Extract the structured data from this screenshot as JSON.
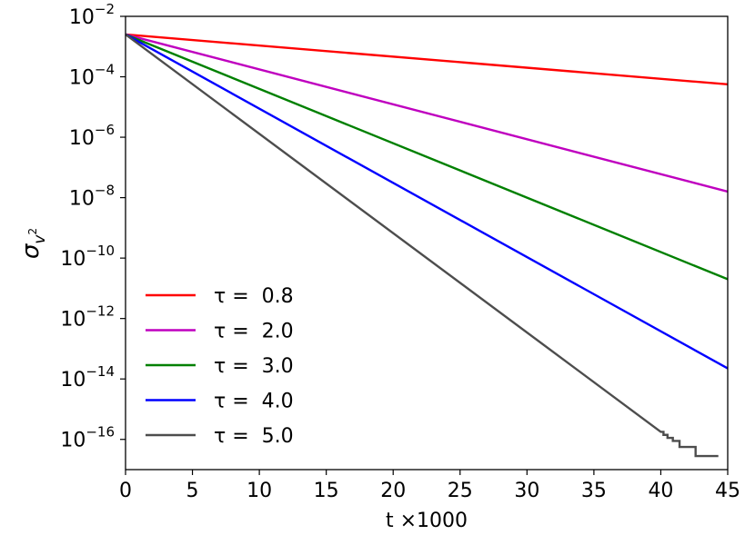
{
  "chart_data": {
    "type": "line",
    "title": "",
    "xlabel": "t ×1000",
    "ylabel": "σ",
    "ylabel_subscript": "v",
    "ylabel_sub_sup": "2",
    "yscale": "log",
    "xlim": [
      0,
      45
    ],
    "ylim_exponent": [
      -17,
      -2
    ],
    "x_ticks": [
      {
        "value": 0,
        "label": "0"
      },
      {
        "value": 5,
        "label": "5"
      },
      {
        "value": 10,
        "label": "10"
      },
      {
        "value": 15,
        "label": "15"
      },
      {
        "value": 20,
        "label": "20"
      },
      {
        "value": 25,
        "label": "25"
      },
      {
        "value": 30,
        "label": "30"
      },
      {
        "value": 35,
        "label": "35"
      },
      {
        "value": 40,
        "label": "40"
      },
      {
        "value": 45,
        "label": "45"
      }
    ],
    "y_ticks": [
      {
        "exp": -2,
        "base": "10",
        "power": "−2"
      },
      {
        "exp": -4,
        "base": "10",
        "power": "−4"
      },
      {
        "exp": -6,
        "base": "10",
        "power": "−6"
      },
      {
        "exp": -8,
        "base": "10",
        "power": "−8"
      },
      {
        "exp": -10,
        "base": "10",
        "power": "−10"
      },
      {
        "exp": -12,
        "base": "10",
        "power": "−12"
      },
      {
        "exp": -14,
        "base": "10",
        "power": "−14"
      },
      {
        "exp": -16,
        "base": "10",
        "power": "−16"
      }
    ],
    "legend_position": "lower-left",
    "series": [
      {
        "name": "τ =  0.8",
        "color": "#ff0000",
        "points": [
          [
            0,
            -2.6
          ],
          [
            45,
            -4.25
          ]
        ]
      },
      {
        "name": "τ =  2.0",
        "color": "#bf00bf",
        "points": [
          [
            0,
            -2.6
          ],
          [
            45,
            -7.8
          ]
        ]
      },
      {
        "name": "τ =  3.0",
        "color": "#008000",
        "points": [
          [
            0,
            -2.6
          ],
          [
            45,
            -10.7
          ]
        ]
      },
      {
        "name": "τ =  4.0",
        "color": "#0000ff",
        "points": [
          [
            0,
            -2.6
          ],
          [
            45,
            -13.65
          ]
        ]
      },
      {
        "name": "τ =  5.0",
        "color": "#4d4d4d",
        "points": [
          [
            0,
            -2.6
          ],
          [
            40.0,
            -15.75
          ],
          [
            40.2,
            -15.75
          ],
          [
            40.2,
            -15.85
          ],
          [
            40.5,
            -15.85
          ],
          [
            40.5,
            -15.95
          ],
          [
            40.9,
            -15.95
          ],
          [
            40.9,
            -16.05
          ],
          [
            41.4,
            -16.05
          ],
          [
            41.4,
            -16.25
          ],
          [
            42.0,
            -16.25
          ],
          [
            42.0,
            -16.25
          ],
          [
            42.6,
            -16.25
          ],
          [
            42.6,
            -16.55
          ],
          [
            44.3,
            -16.55
          ]
        ]
      }
    ]
  }
}
